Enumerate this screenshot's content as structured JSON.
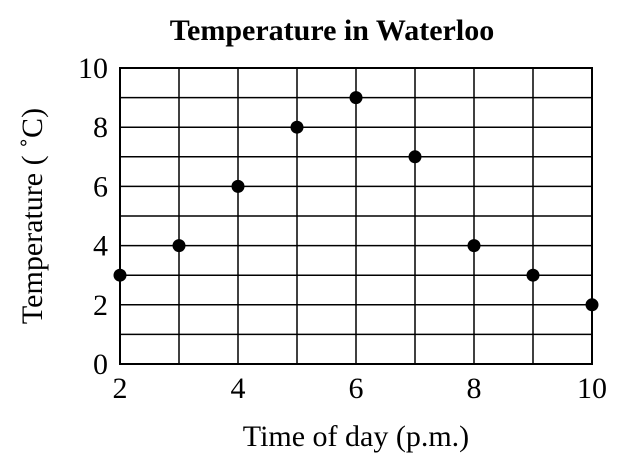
{
  "chart_data": {
    "type": "scatter",
    "title": "Temperature in Waterloo",
    "xlabel": "Time of day (p.m.)",
    "ylabel": "Temperature ( ˚C)",
    "xlim": [
      2,
      10
    ],
    "ylim": [
      0,
      10
    ],
    "x_ticks": [
      2,
      4,
      6,
      8,
      10
    ],
    "y_ticks": [
      0,
      2,
      4,
      6,
      8,
      10
    ],
    "x_grid_step": 1,
    "y_grid_step": 1,
    "grid": true,
    "legend": "none",
    "point_color": "#000000",
    "x": [
      2,
      3,
      4,
      5,
      6,
      7,
      8,
      9,
      10
    ],
    "y": [
      3,
      4,
      6,
      8,
      9,
      7,
      4,
      3,
      2
    ]
  }
}
